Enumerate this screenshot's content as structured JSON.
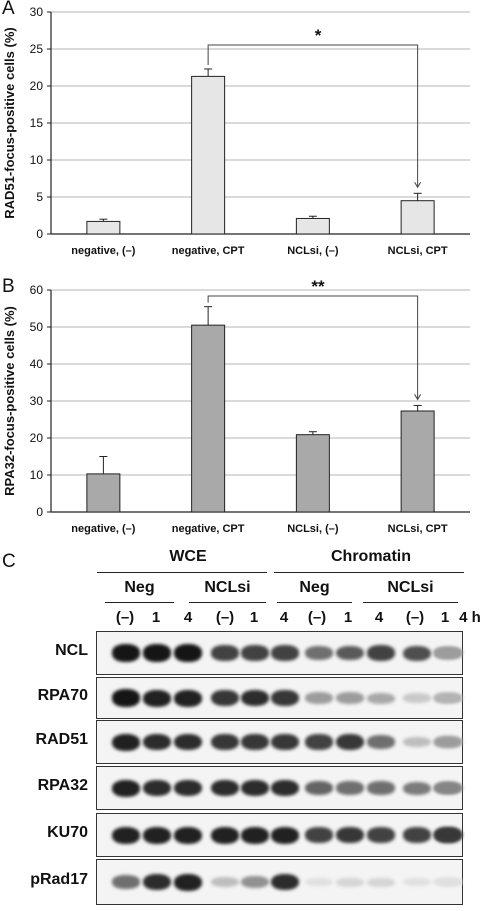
{
  "panels": {
    "a": {
      "letter": "A"
    },
    "b": {
      "letter": "B"
    },
    "c": {
      "letter": "C"
    }
  },
  "chart_data": [
    {
      "type": "bar",
      "title": "",
      "ylabel": "RAD51-focus-positive cells (%)",
      "xlabel": "",
      "categories": [
        "negative, (–)",
        "negative, CPT",
        "NCLsi, (–)",
        "NCLsi, CPT"
      ],
      "values": [
        1.7,
        21.3,
        2.1,
        4.5
      ],
      "errors": [
        0.3,
        1.0,
        0.3,
        1.0
      ],
      "ylim": [
        0,
        30
      ],
      "yticks": [
        0,
        5,
        10,
        15,
        20,
        25,
        30
      ],
      "bar_color": "#e6e6e6",
      "significance": {
        "from": 1,
        "to": 3,
        "label": "*"
      },
      "grid": true
    },
    {
      "type": "bar",
      "title": "",
      "ylabel": "RPA32-focus-positive cells (%)",
      "xlabel": "",
      "categories": [
        "negative, (–)",
        "negative, CPT",
        "NCLsi, (–)",
        "NCLsi, CPT"
      ],
      "values": [
        10.3,
        50.5,
        20.9,
        27.3
      ],
      "errors": [
        4.7,
        5.0,
        0.8,
        1.5
      ],
      "ylim": [
        0,
        60
      ],
      "yticks": [
        0,
        10,
        20,
        30,
        40,
        50,
        60
      ],
      "bar_color": "#a9a9a9",
      "significance": {
        "from": 1,
        "to": 3,
        "label": "**"
      },
      "grid": true
    }
  ],
  "blot": {
    "groups": [
      {
        "label": "WCE"
      },
      {
        "label": "Chromatin"
      }
    ],
    "subgroups": [
      {
        "label": "Neg"
      },
      {
        "label": "NCLsi"
      },
      {
        "label": "Neg"
      },
      {
        "label": "NCLsi"
      }
    ],
    "lanes": [
      "(–)",
      "1",
      "4",
      "(–)",
      "1",
      "4",
      "(–)",
      "1",
      "4",
      "(–)",
      "1",
      "4 h"
    ],
    "rows": [
      {
        "label": "NCL",
        "intensity": [
          0.95,
          0.95,
          0.95,
          0.75,
          0.75,
          0.75,
          0.55,
          0.65,
          0.75,
          0.7,
          0.35,
          0.35
        ]
      },
      {
        "label": "RPA70",
        "intensity": [
          0.95,
          0.9,
          0.9,
          0.8,
          0.85,
          0.8,
          0.35,
          0.35,
          0.3,
          0.15,
          0.25,
          0.25
        ]
      },
      {
        "label": "RAD51",
        "intensity": [
          0.9,
          0.85,
          0.85,
          0.8,
          0.8,
          0.8,
          0.75,
          0.8,
          0.55,
          0.2,
          0.2,
          0.35
        ]
      },
      {
        "label": "RPA32",
        "intensity": [
          0.9,
          0.85,
          0.85,
          0.85,
          0.85,
          0.85,
          0.6,
          0.55,
          0.55,
          0.5,
          0.4,
          0.45
        ]
      },
      {
        "label": "KU70",
        "intensity": [
          0.9,
          0.9,
          0.9,
          0.9,
          0.9,
          0.9,
          0.75,
          0.8,
          0.75,
          0.75,
          0.65,
          0.8
        ]
      },
      {
        "label": "pRad17",
        "intensity": [
          0.55,
          0.85,
          0.9,
          0.2,
          0.4,
          0.85,
          0.05,
          0.1,
          0.1,
          0.05,
          0.05,
          0.05
        ]
      }
    ]
  }
}
